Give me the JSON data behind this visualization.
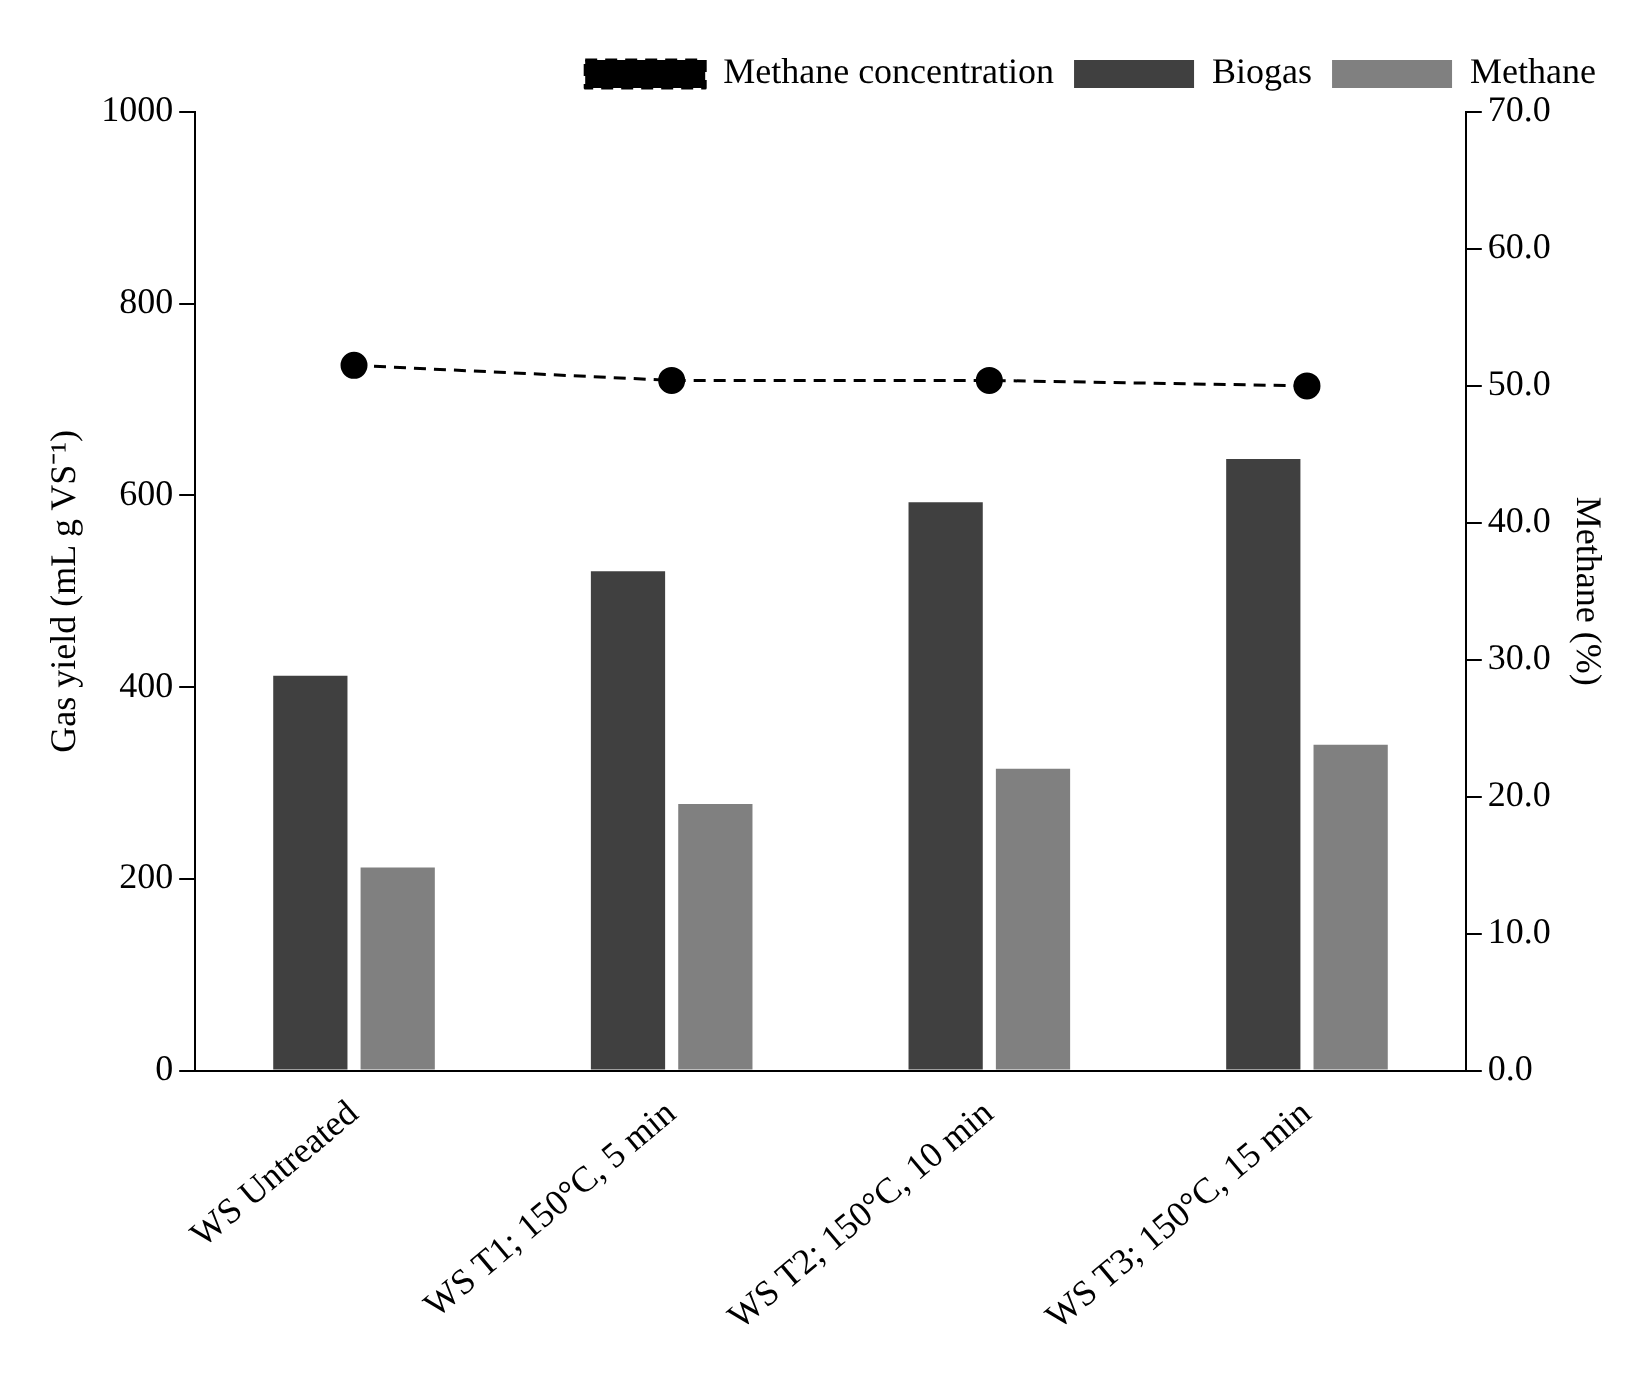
{
  "chart_data": {
    "type": "bar",
    "ylabel": "Gas yield (mL g VS⁻¹)",
    "y2label": "Methane (%)",
    "categories": [
      "WS Untreated",
      "WS T1; 150°C, 5 min",
      "WS T2; 150°C, 10 min",
      "WS T3; 150°C, 15 min"
    ],
    "series": [
      {
        "name": "Biogas",
        "color": "#404040",
        "values": [
          412,
          521,
          593,
          638
        ]
      },
      {
        "name": "Methane",
        "color": "#808080",
        "values": [
          212,
          278,
          315,
          340
        ]
      },
      {
        "name": "Methane concentration",
        "type": "line",
        "axis": "y2",
        "color": "#000000",
        "marker": "circle",
        "line_style": "dashed",
        "values": [
          51.5,
          50.4,
          50.4,
          50.0
        ]
      }
    ],
    "ylim": [
      0,
      1000
    ],
    "yticks": [
      0,
      200,
      400,
      600,
      800,
      1000
    ],
    "y2lim": [
      0,
      70
    ],
    "y2ticks": [
      {
        "value": 0,
        "label": "0.0"
      },
      {
        "value": 10,
        "label": "10.0"
      },
      {
        "value": 20,
        "label": "20.0"
      },
      {
        "value": 30,
        "label": "30.0"
      },
      {
        "value": 40,
        "label": "40.0"
      },
      {
        "value": 50,
        "label": "50.0"
      },
      {
        "value": 60,
        "label": "60.0"
      },
      {
        "value": 70,
        "label": "70.0"
      }
    ],
    "grid": false,
    "legend": "top right"
  }
}
